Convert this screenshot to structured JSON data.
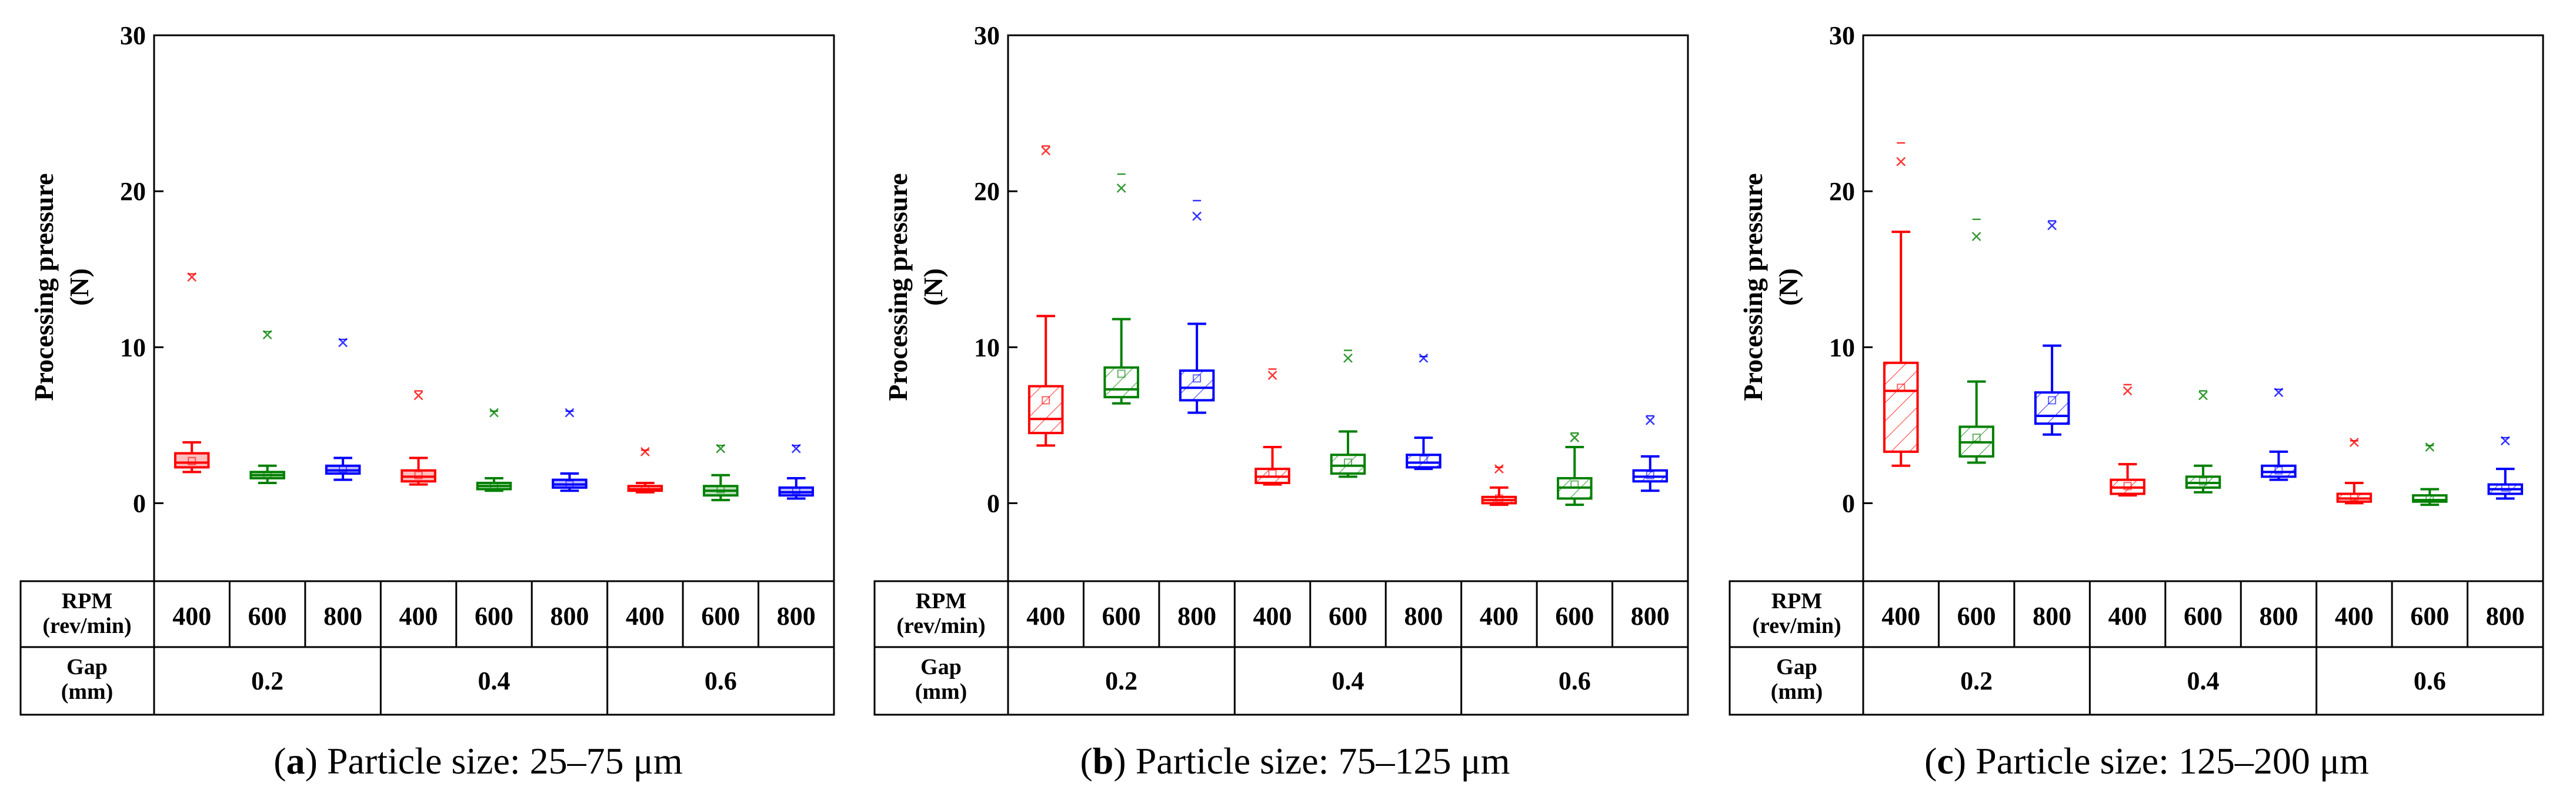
{
  "figure": {
    "row_labels": {
      "rpm_label_1": "RPM",
      "rpm_label_2": "(rev/min)",
      "gap_label_1": "Gap",
      "gap_label_2": "(mm)"
    }
  },
  "chart_data": [
    {
      "type": "box",
      "panel_letter": "a",
      "caption": "Particle size: 25–75 μm",
      "ylabel": "Processing pressure",
      "ylabel_unit": "(N)",
      "ylim": [
        -5,
        30
      ],
      "yticks": [
        0,
        10,
        20,
        30
      ],
      "gaps": [
        "0.2",
        "0.4",
        "0.6"
      ],
      "rpms": [
        "400",
        "600",
        "800"
      ],
      "series_colors": [
        "#ff0000",
        "#008000",
        "#0000ff"
      ],
      "boxes": [
        {
          "gap": "0.2",
          "rpm": "400",
          "min": 2.0,
          "q1": 2.3,
          "median": 2.6,
          "q3": 3.2,
          "max": 3.9,
          "mean": 2.7,
          "outlier": 14.5,
          "cap": 14.7,
          "hatched": false
        },
        {
          "gap": "0.2",
          "rpm": "600",
          "min": 1.3,
          "q1": 1.6,
          "median": 1.8,
          "q3": 2.0,
          "max": 2.4,
          "mean": 1.8,
          "outlier": 10.8,
          "cap": 11.0,
          "hatched": false
        },
        {
          "gap": "0.2",
          "rpm": "800",
          "min": 1.5,
          "q1": 1.9,
          "median": 2.1,
          "q3": 2.4,
          "max": 2.9,
          "mean": 2.2,
          "outlier": 10.3,
          "cap": 10.5,
          "hatched": false
        },
        {
          "gap": "0.4",
          "rpm": "400",
          "min": 1.2,
          "q1": 1.4,
          "median": 1.7,
          "q3": 2.1,
          "max": 2.9,
          "mean": 1.8,
          "outlier": 6.9,
          "cap": 7.2,
          "hatched": false
        },
        {
          "gap": "0.4",
          "rpm": "600",
          "min": 0.8,
          "q1": 0.9,
          "median": 1.1,
          "q3": 1.3,
          "max": 1.6,
          "mean": 1.1,
          "outlier": 5.8,
          "cap": 5.9,
          "hatched": false
        },
        {
          "gap": "0.4",
          "rpm": "800",
          "min": 0.8,
          "q1": 1.0,
          "median": 1.2,
          "q3": 1.5,
          "max": 1.9,
          "mean": 1.2,
          "outlier": 5.8,
          "cap": 5.9,
          "hatched": false
        },
        {
          "gap": "0.6",
          "rpm": "400",
          "min": 0.7,
          "q1": 0.8,
          "median": 0.9,
          "q3": 1.1,
          "max": 1.3,
          "mean": 0.9,
          "outlier": 3.3,
          "cap": 3.4,
          "hatched": false
        },
        {
          "gap": "0.6",
          "rpm": "600",
          "min": 0.2,
          "q1": 0.5,
          "median": 0.8,
          "q3": 1.1,
          "max": 1.8,
          "mean": 0.9,
          "outlier": 3.5,
          "cap": 3.7,
          "hatched": false
        },
        {
          "gap": "0.6",
          "rpm": "800",
          "min": 0.3,
          "q1": 0.5,
          "median": 0.7,
          "q3": 1.0,
          "max": 1.6,
          "mean": 0.8,
          "outlier": 3.5,
          "cap": 3.7,
          "hatched": false
        }
      ]
    },
    {
      "type": "box",
      "panel_letter": "b",
      "caption": "Particle size: 75–125 μm",
      "ylabel": "Processing pressure",
      "ylabel_unit": "(N)",
      "ylim": [
        -5,
        30
      ],
      "yticks": [
        0,
        10,
        20,
        30
      ],
      "gaps": [
        "0.2",
        "0.4",
        "0.6"
      ],
      "rpms": [
        "400",
        "600",
        "800"
      ],
      "series_colors": [
        "#ff0000",
        "#008000",
        "#0000ff"
      ],
      "boxes": [
        {
          "gap": "0.2",
          "rpm": "400",
          "min": 3.7,
          "q1": 4.5,
          "median": 5.4,
          "q3": 7.5,
          "max": 12.0,
          "mean": 6.6,
          "outlier": 22.6,
          "cap": 22.9,
          "hatched": true
        },
        {
          "gap": "0.2",
          "rpm": "600",
          "min": 6.4,
          "q1": 6.8,
          "median": 7.3,
          "q3": 8.7,
          "max": 11.8,
          "mean": 8.3,
          "outlier": 20.2,
          "cap": 21.1,
          "hatched": true
        },
        {
          "gap": "0.2",
          "rpm": "800",
          "min": 5.8,
          "q1": 6.6,
          "median": 7.4,
          "q3": 8.5,
          "max": 11.5,
          "mean": 8.0,
          "outlier": 18.4,
          "cap": 19.4,
          "hatched": true
        },
        {
          "gap": "0.4",
          "rpm": "400",
          "min": 1.2,
          "q1": 1.3,
          "median": 1.7,
          "q3": 2.2,
          "max": 3.6,
          "mean": 1.9,
          "outlier": 8.2,
          "cap": 8.6,
          "hatched": true
        },
        {
          "gap": "0.4",
          "rpm": "600",
          "min": 1.7,
          "q1": 1.9,
          "median": 2.4,
          "q3": 3.1,
          "max": 4.6,
          "mean": 2.6,
          "outlier": 9.3,
          "cap": 9.8,
          "hatched": true
        },
        {
          "gap": "0.4",
          "rpm": "800",
          "min": 2.2,
          "q1": 2.3,
          "median": 2.6,
          "q3": 3.1,
          "max": 4.2,
          "mean": 2.8,
          "outlier": 9.3,
          "cap": 9.4,
          "hatched": true
        },
        {
          "gap": "0.6",
          "rpm": "400",
          "min": -0.1,
          "q1": 0.0,
          "median": 0.2,
          "q3": 0.4,
          "max": 1.0,
          "mean": 0.3,
          "outlier": 2.2,
          "cap": 2.3,
          "hatched": true
        },
        {
          "gap": "0.6",
          "rpm": "600",
          "min": -0.1,
          "q1": 0.3,
          "median": 1.0,
          "q3": 1.6,
          "max": 3.6,
          "mean": 1.2,
          "outlier": 4.2,
          "cap": 4.5,
          "hatched": true
        },
        {
          "gap": "0.6",
          "rpm": "800",
          "min": 0.8,
          "q1": 1.4,
          "median": 1.7,
          "q3": 2.1,
          "max": 3.0,
          "mean": 1.8,
          "outlier": 5.3,
          "cap": 5.6,
          "hatched": true
        }
      ]
    },
    {
      "type": "box",
      "panel_letter": "c",
      "caption": "Particle size: 125–200 μm",
      "ylabel": "Processing pressure",
      "ylabel_unit": "(N)",
      "ylim": [
        -5,
        30
      ],
      "yticks": [
        0,
        10,
        20,
        30
      ],
      "gaps": [
        "0.2",
        "0.4",
        "0.6"
      ],
      "rpms": [
        "400",
        "600",
        "800"
      ],
      "series_colors": [
        "#ff0000",
        "#008000",
        "#0000ff"
      ],
      "boxes": [
        {
          "gap": "0.2",
          "rpm": "400",
          "min": 2.4,
          "q1": 3.3,
          "median": 7.2,
          "q3": 9.0,
          "max": 17.4,
          "mean": 7.4,
          "outlier": 21.9,
          "cap": 23.1,
          "hatched": true
        },
        {
          "gap": "0.2",
          "rpm": "600",
          "min": 2.6,
          "q1": 3.0,
          "median": 3.9,
          "q3": 4.9,
          "max": 7.8,
          "mean": 4.2,
          "outlier": 17.1,
          "cap": 18.2,
          "hatched": true
        },
        {
          "gap": "0.2",
          "rpm": "800",
          "min": 4.4,
          "q1": 5.1,
          "median": 5.6,
          "q3": 7.1,
          "max": 10.1,
          "mean": 6.6,
          "outlier": 17.8,
          "cap": 18.1,
          "hatched": true
        },
        {
          "gap": "0.4",
          "rpm": "400",
          "min": 0.5,
          "q1": 0.6,
          "median": 1.0,
          "q3": 1.5,
          "max": 2.5,
          "mean": 1.1,
          "outlier": 7.2,
          "cap": 7.6,
          "hatched": true
        },
        {
          "gap": "0.4",
          "rpm": "600",
          "min": 0.7,
          "q1": 1.0,
          "median": 1.3,
          "q3": 1.7,
          "max": 2.4,
          "mean": 1.4,
          "outlier": 6.9,
          "cap": 7.2,
          "hatched": true
        },
        {
          "gap": "0.4",
          "rpm": "800",
          "min": 1.5,
          "q1": 1.7,
          "median": 2.0,
          "q3": 2.4,
          "max": 3.3,
          "mean": 2.1,
          "outlier": 7.1,
          "cap": 7.3,
          "hatched": true
        },
        {
          "gap": "0.6",
          "rpm": "400",
          "min": 0.0,
          "q1": 0.1,
          "median": 0.3,
          "q3": 0.6,
          "max": 1.3,
          "mean": 0.4,
          "outlier": 3.9,
          "cap": 4.0,
          "hatched": true
        },
        {
          "gap": "0.6",
          "rpm": "600",
          "min": -0.1,
          "q1": 0.1,
          "median": 0.2,
          "q3": 0.5,
          "max": 0.9,
          "mean": 0.3,
          "outlier": 3.6,
          "cap": 3.7,
          "hatched": true
        },
        {
          "gap": "0.6",
          "rpm": "800",
          "min": 0.3,
          "q1": 0.6,
          "median": 0.9,
          "q3": 1.2,
          "max": 2.2,
          "mean": 1.0,
          "outlier": 4.0,
          "cap": 4.2,
          "hatched": true
        }
      ]
    }
  ]
}
